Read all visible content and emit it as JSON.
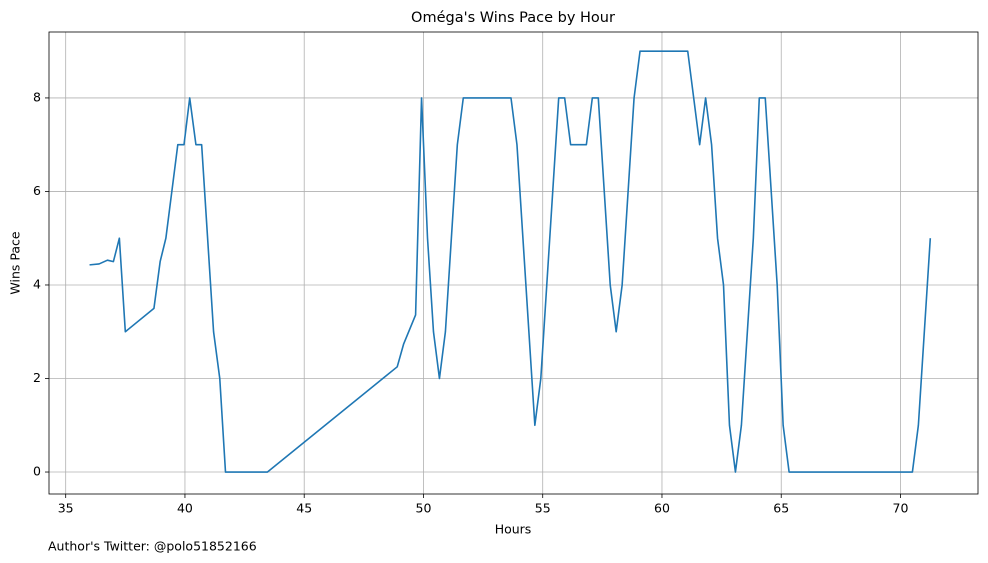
{
  "chart_data": {
    "type": "line",
    "title": "Oméga's Wins Pace by Hour",
    "x_label": "Hours",
    "y_label": "Wins Pace",
    "x": [
      36.0,
      36.4,
      36.75,
      37.0,
      37.25,
      37.5,
      38.7,
      38.96,
      39.2,
      39.7,
      39.96,
      40.2,
      40.46,
      40.7,
      41.2,
      41.46,
      41.7,
      43.46,
      48.9,
      49.17,
      49.67,
      49.92,
      50.17,
      50.42,
      50.67,
      50.92,
      51.17,
      51.42,
      51.67,
      53.67,
      53.92,
      54.17,
      54.42,
      54.67,
      54.92,
      55.17,
      55.42,
      55.67,
      55.92,
      56.17,
      56.83,
      57.08,
      57.33,
      57.58,
      57.83,
      58.08,
      58.33,
      58.58,
      58.83,
      59.08,
      61.08,
      61.58,
      61.83,
      62.08,
      62.33,
      62.58,
      62.83,
      63.08,
      63.33,
      63.58,
      63.83,
      64.08,
      64.33,
      64.58,
      64.83,
      65.08,
      65.33,
      70.5,
      70.75,
      71.0,
      71.25
    ],
    "series": [
      {
        "name": "Wins Pace",
        "color": "#1f77b4",
        "values": [
          4.43,
          4.45,
          4.53,
          4.5,
          5,
          3,
          3.5,
          4.5,
          5,
          7,
          7,
          8,
          7,
          7,
          3,
          2,
          0,
          0,
          2.25,
          2.74,
          3.36,
          8,
          5,
          3,
          2,
          3,
          5,
          7,
          8,
          8,
          7,
          5,
          3,
          1,
          2,
          4,
          6,
          8,
          8,
          7,
          7,
          8,
          8,
          6,
          4,
          3,
          4,
          6,
          8,
          9,
          9,
          7,
          8,
          7,
          5,
          4,
          1,
          0,
          1,
          3,
          5,
          8,
          8,
          6,
          4,
          1,
          0,
          0,
          1,
          3,
          5
        ]
      }
    ],
    "xlim": [
      34.3,
      73.25
    ],
    "ylim": [
      -0.47,
      9.41
    ],
    "xticks": [
      35,
      40,
      45,
      50,
      55,
      60,
      65,
      70
    ],
    "yticks": [
      0,
      2,
      4,
      6,
      8
    ],
    "grid": true
  },
  "footer": "Author's Twitter: @polo51852166"
}
